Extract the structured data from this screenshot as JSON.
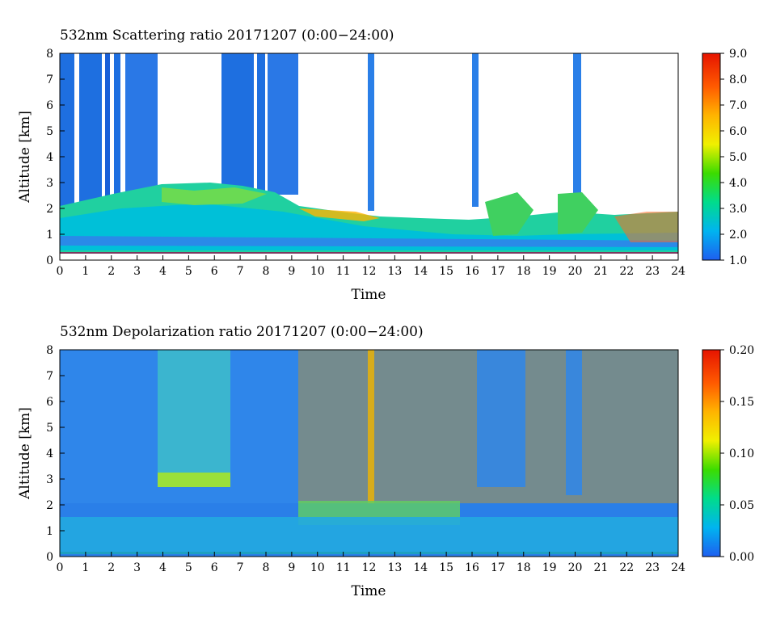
{
  "chart_data": [
    {
      "type": "heatmap",
      "title": "532nm Scattering ratio  20171207 (0:00−24:00)",
      "xlabel": "Time",
      "ylabel": "Altitude [km]",
      "xlim": [
        0,
        24
      ],
      "ylim": [
        0,
        8
      ],
      "x_ticks": [
        "0",
        "1",
        "2",
        "3",
        "4",
        "5",
        "6",
        "7",
        "8",
        "9",
        "10",
        "11",
        "12",
        "13",
        "14",
        "15",
        "16",
        "17",
        "18",
        "19",
        "20",
        "21",
        "22",
        "23",
        "24"
      ],
      "y_ticks": [
        "0",
        "1",
        "2",
        "3",
        "4",
        "5",
        "6",
        "7",
        "8"
      ],
      "colorbar": {
        "min": 1.0,
        "max": 9.0,
        "ticks": [
          "1.0",
          "2.0",
          "3.0",
          "4.0",
          "5.0",
          "6.0",
          "7.0",
          "8.0",
          "9.0"
        ],
        "colors": [
          "#1e5ff0",
          "#00b4f0",
          "#00dc8c",
          "#3cdc00",
          "#f0f000",
          "#ffb400",
          "#ff5a00",
          "#e61400"
        ]
      },
      "features": [
        {
          "name": "low aerosol layer",
          "x": [
            0,
            24
          ],
          "y": [
            0.3,
            2.5
          ],
          "value": 3.0
        },
        {
          "name": "cloud",
          "x": [
            12.0,
            12.2
          ],
          "y": [
            2.2,
            8.0
          ],
          "value": 2.0
        },
        {
          "name": "cloud",
          "x": [
            16.0,
            16.2
          ],
          "y": [
            1.2,
            8.0
          ],
          "value": 2.0
        },
        {
          "name": "cloud",
          "x": [
            19.9,
            20.2
          ],
          "y": [
            1.0,
            8.0
          ],
          "value": 2.0
        }
      ]
    },
    {
      "type": "heatmap",
      "title": "532nm Depolarization ratio  20171207 (0:00−24:00)",
      "xlabel": "Time",
      "ylabel": "Altitude [km]",
      "xlim": [
        0,
        24
      ],
      "ylim": [
        0,
        8
      ],
      "x_ticks": [
        "0",
        "1",
        "2",
        "3",
        "4",
        "5",
        "6",
        "7",
        "8",
        "9",
        "10",
        "11",
        "12",
        "13",
        "14",
        "15",
        "16",
        "17",
        "18",
        "19",
        "20",
        "21",
        "22",
        "23",
        "24"
      ],
      "y_ticks": [
        "0",
        "1",
        "2",
        "3",
        "4",
        "5",
        "6",
        "7",
        "8"
      ],
      "colorbar": {
        "min": 0.0,
        "max": 0.2,
        "ticks": [
          "0.00",
          "0.05",
          "0.10",
          "0.15",
          "0.20"
        ],
        "colors": [
          "#1e5ff0",
          "#00b4f0",
          "#00dc8c",
          "#3cdc00",
          "#f0f000",
          "#ffb400",
          "#ff5a00",
          "#e61400"
        ]
      },
      "features": [
        {
          "name": "noisy high region",
          "x": [
            9.3,
            24
          ],
          "y": [
            2.0,
            8.0
          ],
          "value": 0.12
        },
        {
          "name": "aerosol layer",
          "x": [
            3.8,
            6.4
          ],
          "y": [
            2.7,
            3.1
          ],
          "value": 0.1
        },
        {
          "name": "boundary layer",
          "x": [
            0,
            24
          ],
          "y": [
            0,
            2.0
          ],
          "value": 0.04
        }
      ]
    }
  ]
}
